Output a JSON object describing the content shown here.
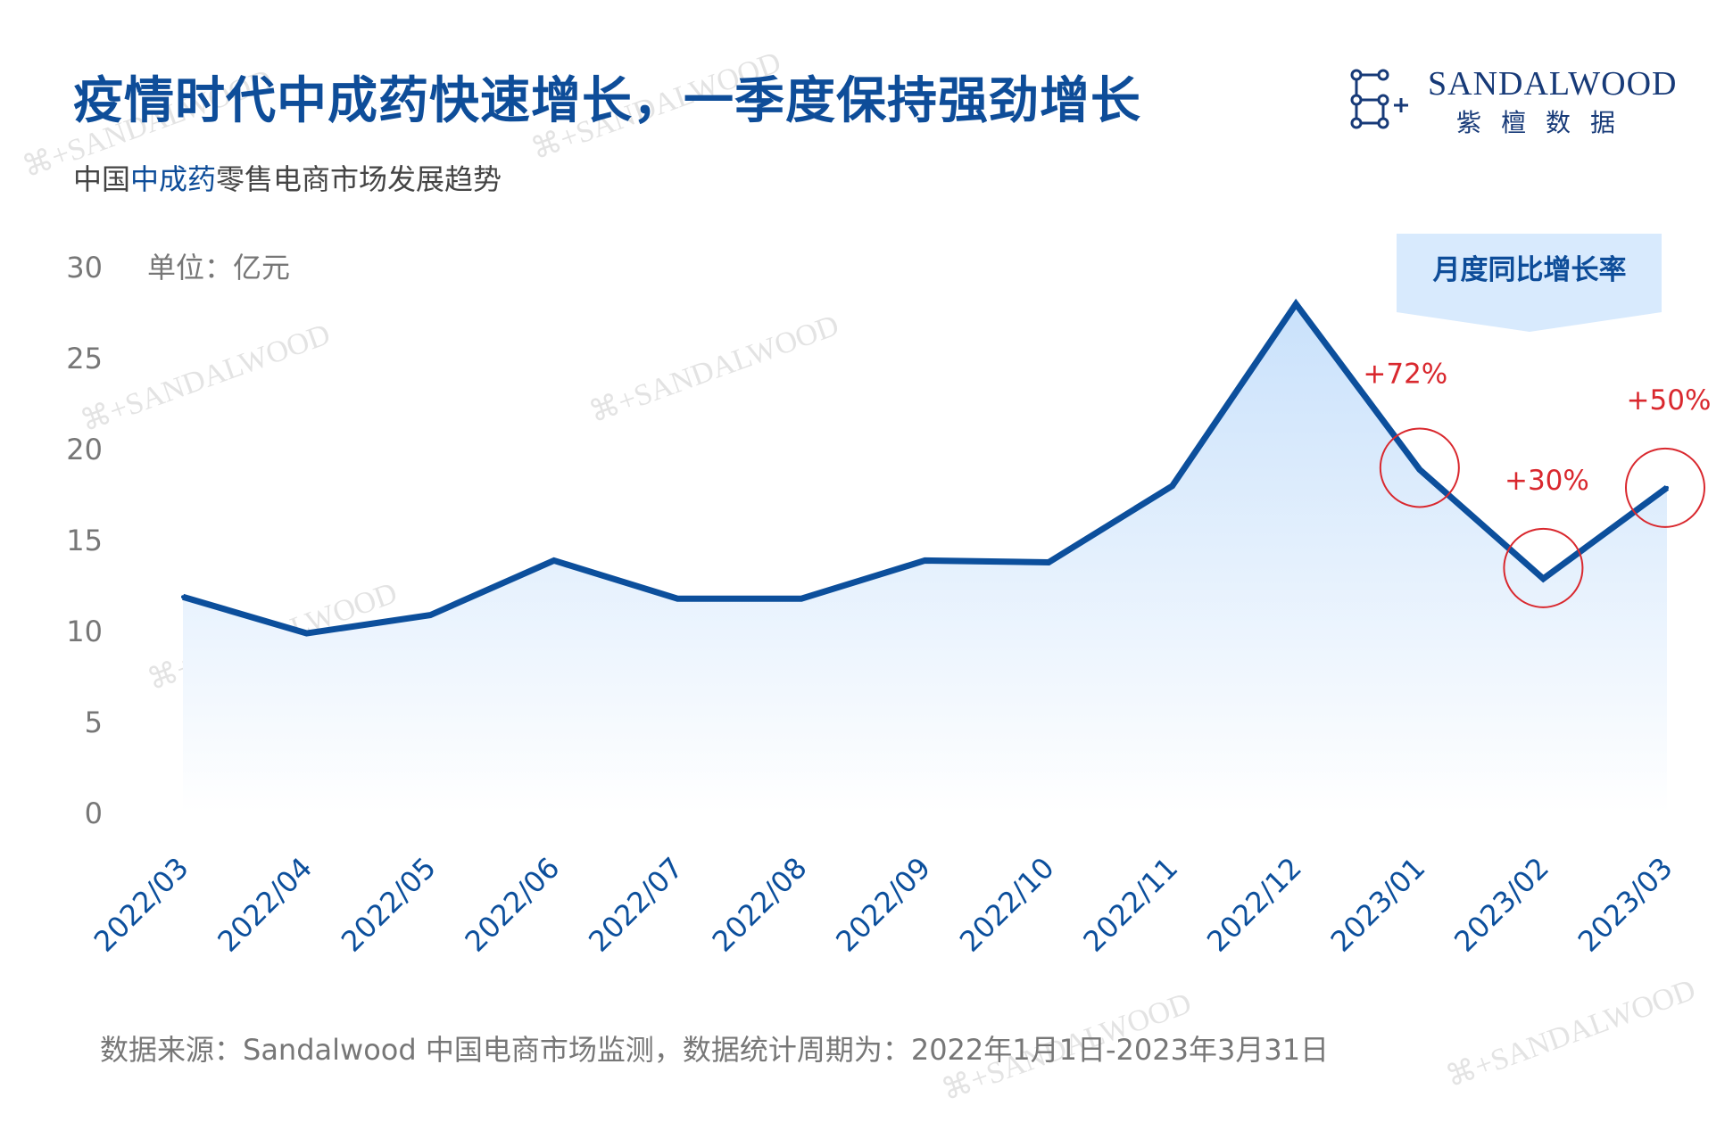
{
  "header": {
    "title": "疫情时代中成药快速增长，一季度保持强劲增长",
    "subtitle_prefix": "中国",
    "subtitle_highlight": "中成药",
    "subtitle_suffix": "零售电商市场发展趋势"
  },
  "logo": {
    "name_en": "SANDALWOOD",
    "name_cn": "紫檀数据",
    "icon": "network-nodes-icon"
  },
  "watermark_text": "SANDALWOOD",
  "footer": {
    "source": "数据来源：Sandalwood 中国电商市场监测，数据统计周期为：2022年1月1日-2023年3月31日"
  },
  "colors": {
    "line": "#0c4f9c",
    "area_top": "#c9e1fb",
    "area_bottom": "#ffffff",
    "annotation": "#d9282e",
    "callout_bg": "#d8eafd",
    "title": "#0e4d99",
    "axis_text": "#777777"
  },
  "chart_data": {
    "type": "area",
    "unit_label": "单位：亿元",
    "callout_label": "月度同比增长率",
    "categories": [
      "2022/03",
      "2022/04",
      "2022/05",
      "2022/06",
      "2022/07",
      "2022/08",
      "2022/09",
      "2022/10",
      "2022/11",
      "2022/12",
      "2023/01",
      "2023/02",
      "2023/03"
    ],
    "series": [
      {
        "values": [
          11.9,
          9.9,
          10.9,
          13.9,
          11.8,
          11.8,
          13.9,
          13.8,
          18.0,
          28.0,
          18.9,
          12.9,
          17.9
        ]
      }
    ],
    "ylim": [
      0,
      30
    ],
    "yticks": [
      0,
      5,
      10,
      15,
      20,
      25,
      30
    ],
    "annotations": [
      {
        "category": "2023/01",
        "label": "+72%"
      },
      {
        "category": "2023/02",
        "label": "+30%"
      },
      {
        "category": "2023/03",
        "label": "+50%"
      }
    ],
    "grid": false,
    "legend": "none"
  }
}
